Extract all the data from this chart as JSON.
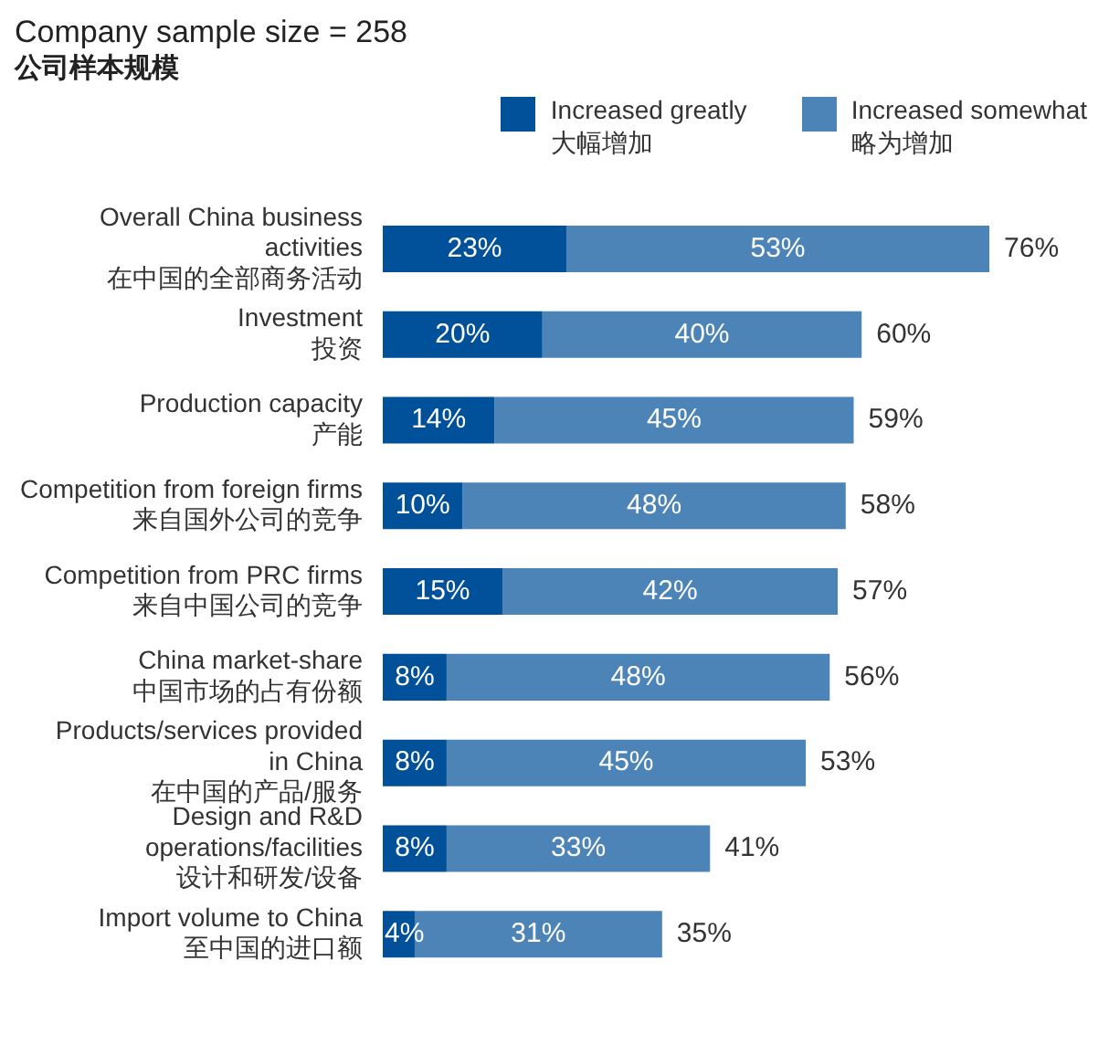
{
  "chart_data": {
    "type": "bar",
    "title": "Company sample size = 258",
    "subtitle": "公司样本规模",
    "orientation": "horizontal",
    "stacked": true,
    "legend": "top right",
    "categories": [
      "Overall China business\nactivities\n在中国的全部商务活动",
      "Investment\n投资",
      "Production capacity\n产能",
      "Competition from foreign firms\n来自国外公司的竞争",
      "Competition from PRC firms\n来自中国公司的竞争",
      "China market-share\n中国市场的占有份额",
      "Products/services provided\nin China\n在中国的产品/服务",
      "Design and R&D\noperations/facilities\n设计和研发/设备",
      "Import volume to China\n至中国的进口额"
    ],
    "series": [
      {
        "name": "Increased greatly\n大幅增加",
        "color": "#00509a",
        "values": [
          23,
          20,
          14,
          10,
          15,
          8,
          8,
          8,
          4
        ],
        "value_labels": [
          "23%",
          "20%",
          "14%",
          "10%",
          "15%",
          "8%",
          "8%",
          "8%",
          "4%"
        ]
      },
      {
        "name": "Increased somewhat\n略为增加",
        "color": "#4d84b8",
        "values": [
          53,
          40,
          45,
          48,
          42,
          48,
          45,
          33,
          31
        ],
        "value_labels": [
          "53%",
          "40%",
          "45%",
          "48%",
          "42%",
          "48%",
          "45%",
          "33%",
          "31%"
        ]
      }
    ],
    "totals": [
      "76%",
      "60%",
      "59%",
      "58%",
      "57%",
      "56%",
      "53%",
      "41%",
      "35%"
    ]
  }
}
